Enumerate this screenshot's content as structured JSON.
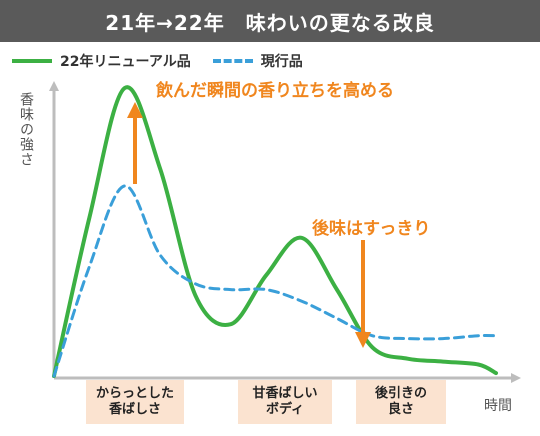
{
  "chart_data": {
    "type": "line",
    "title": "21年→22年　味わいの更なる改良",
    "xlabel": "時間",
    "ylabel": "香味の強さ",
    "categories": [
      "からっとした\n香ばしさ",
      "甘香ばしい\nボディ",
      "後引きの\n良さ"
    ],
    "x": [
      0,
      8,
      16,
      24,
      32,
      40,
      48,
      56,
      64,
      72,
      80,
      88,
      96,
      100
    ],
    "xlim": [
      0,
      100
    ],
    "ylim": [
      0,
      100
    ],
    "series": [
      {
        "name": "22年リニューアル品",
        "color": "#3cb043",
        "style": "solid",
        "values": [
          0,
          55,
          100,
          72,
          28,
          18,
          35,
          48,
          30,
          10,
          6,
          5,
          4,
          1
        ]
      },
      {
        "name": "現行品",
        "color": "#3a9fd9",
        "style": "dashed",
        "values": [
          0,
          38,
          66,
          42,
          32,
          30,
          30,
          26,
          20,
          14,
          13,
          13,
          14,
          14
        ]
      }
    ],
    "annotations": [
      {
        "text": "飲んだ瞬間の香り立ちを高める",
        "color": "#f0861e"
      },
      {
        "text": "後味はすっきり",
        "color": "#f0861e"
      }
    ],
    "grid": false,
    "legend": "top-left"
  }
}
